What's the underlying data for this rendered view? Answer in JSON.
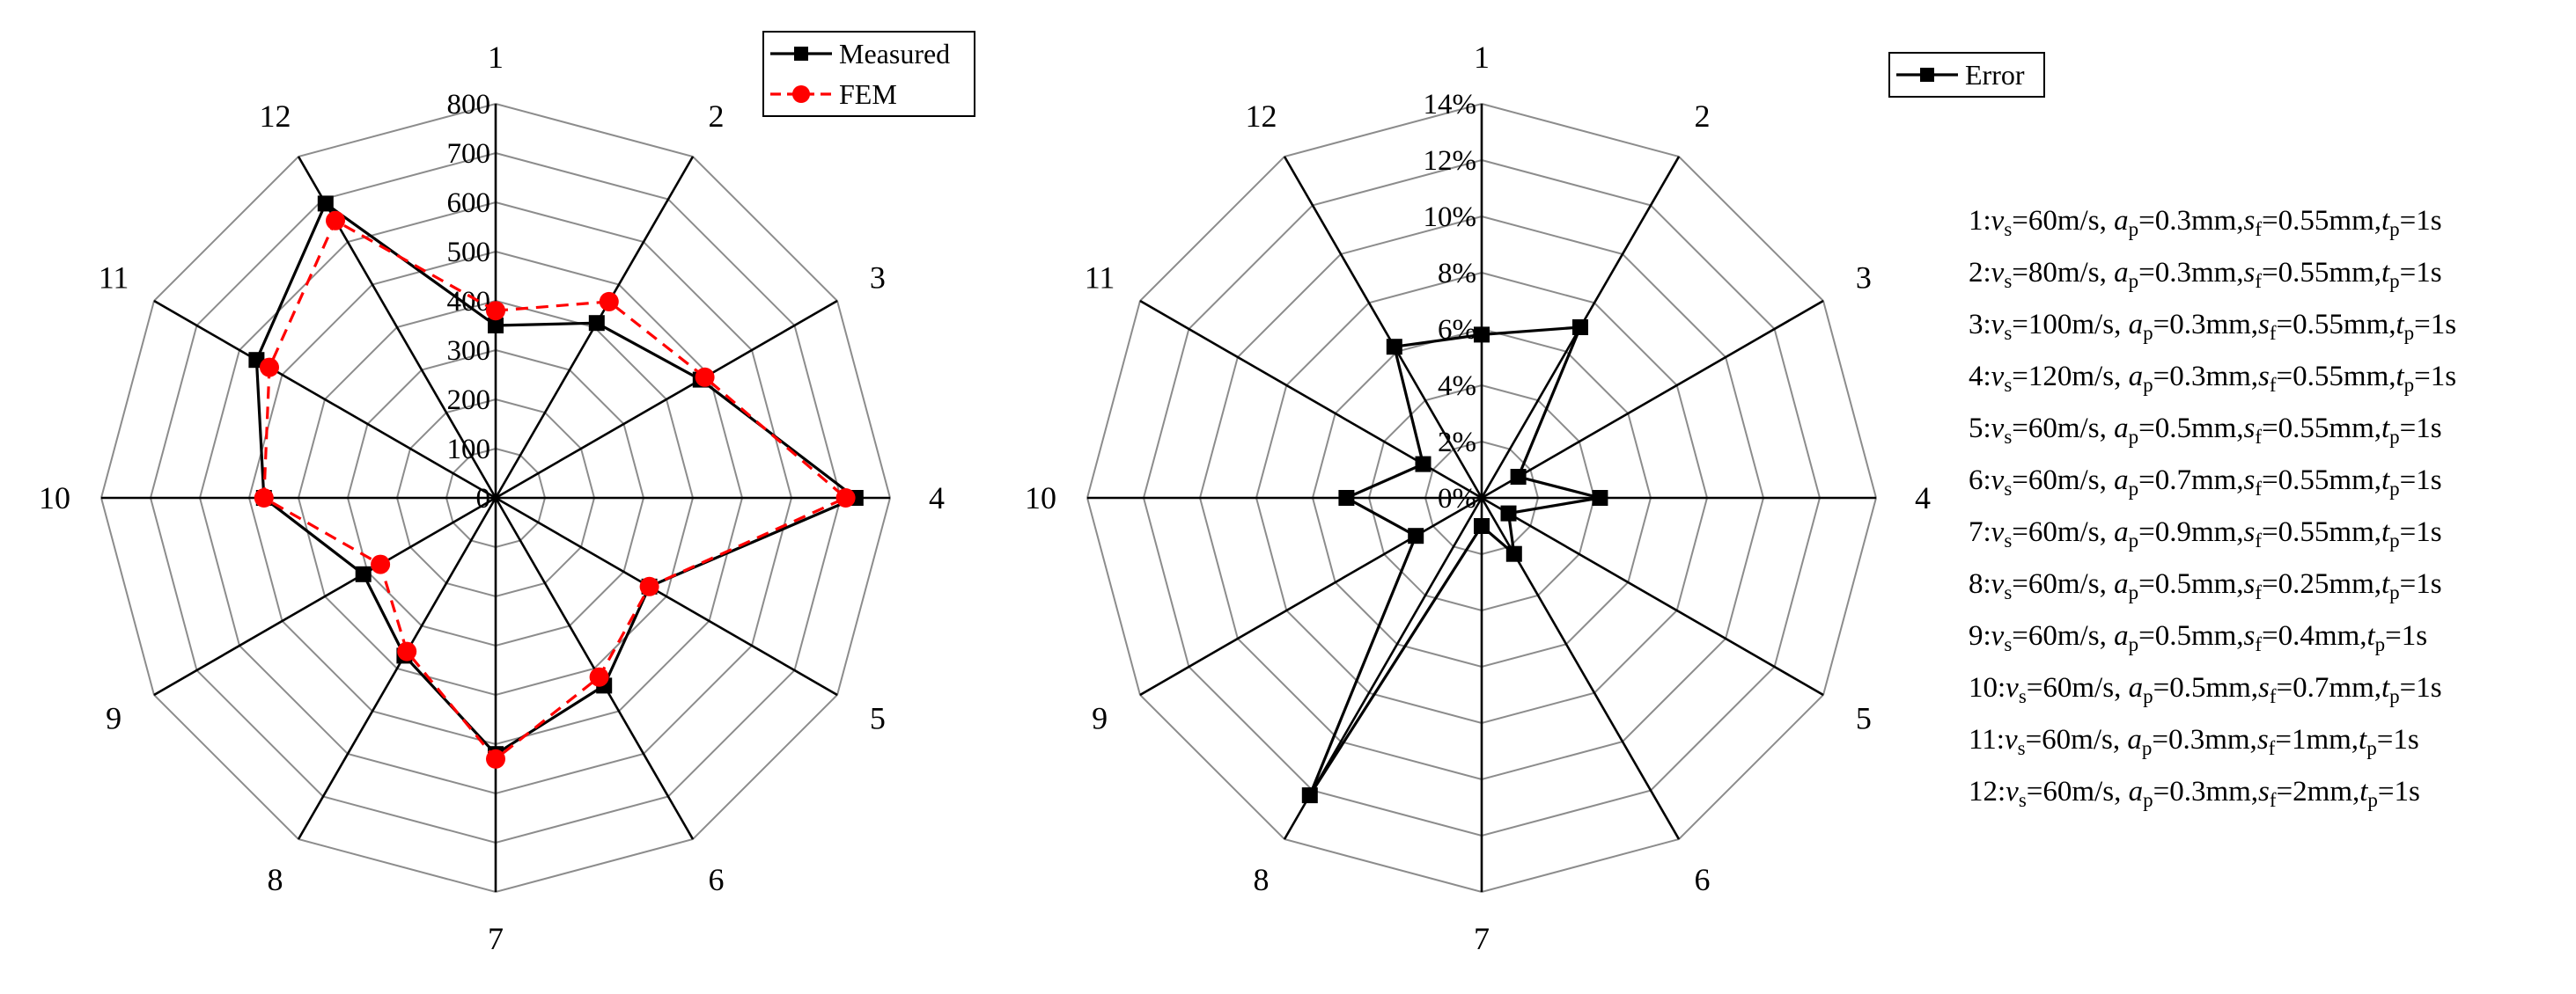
{
  "charts": [
    {
      "type": "radar",
      "axes": [
        "1",
        "2",
        "3",
        "4",
        "5",
        "6",
        "7",
        "8",
        "9",
        "10",
        "11",
        "12"
      ],
      "radial_ticks": [
        "0",
        "100",
        "200",
        "300",
        "400",
        "500",
        "600",
        "700",
        "800"
      ],
      "rmax": 800,
      "series": [
        {
          "name": "Measured",
          "color": "#000000",
          "dash": false,
          "marker": "square",
          "values": [
            350,
            410,
            480,
            730,
            360,
            440,
            520,
            370,
            310,
            470,
            560,
            690
          ]
        },
        {
          "name": "FEM",
          "color": "#ff0000",
          "dash": true,
          "marker": "circle",
          "values": [
            380,
            460,
            490,
            710,
            360,
            420,
            530,
            360,
            270,
            470,
            530,
            650
          ]
        }
      ]
    },
    {
      "type": "radar",
      "axes": [
        "1",
        "2",
        "3",
        "4",
        "5",
        "6",
        "7",
        "8",
        "9",
        "10",
        "11",
        "12"
      ],
      "radial_ticks": [
        "0%",
        "2%",
        "4%",
        "6%",
        "8%",
        "10%",
        "12%",
        "14%"
      ],
      "rmax": 14,
      "series": [
        {
          "name": "Error",
          "color": "#000000",
          "dash": false,
          "marker": "square",
          "values": [
            5.8,
            7.0,
            1.5,
            4.2,
            1.1,
            2.3,
            1.0,
            12.2,
            2.7,
            4.8,
            2.4,
            6.2
          ]
        }
      ]
    }
  ],
  "chart_data": [
    {
      "type": "radar",
      "categories": [
        "1",
        "2",
        "3",
        "4",
        "5",
        "6",
        "7",
        "8",
        "9",
        "10",
        "11",
        "12"
      ],
      "series": [
        {
          "name": "Measured",
          "values": [
            350,
            410,
            480,
            730,
            360,
            440,
            520,
            370,
            310,
            470,
            560,
            690
          ]
        },
        {
          "name": "FEM",
          "values": [
            380,
            460,
            490,
            710,
            360,
            420,
            530,
            360,
            270,
            470,
            530,
            650
          ]
        }
      ],
      "ylim": [
        0,
        800
      ],
      "ticks": [
        "0",
        "100",
        "200",
        "300",
        "400",
        "500",
        "600",
        "700",
        "800"
      ],
      "title": "",
      "xlabel": "",
      "ylabel": "",
      "grid": true,
      "legend": "top-right"
    },
    {
      "type": "radar",
      "categories": [
        "1",
        "2",
        "3",
        "4",
        "5",
        "6",
        "7",
        "8",
        "9",
        "10",
        "11",
        "12"
      ],
      "series": [
        {
          "name": "Error",
          "values": [
            5.8,
            7.0,
            1.5,
            4.2,
            1.1,
            2.3,
            1.0,
            12.2,
            2.7,
            4.8,
            2.4,
            6.2
          ]
        }
      ],
      "ylim": [
        0,
        14
      ],
      "ticks": [
        "0%",
        "2%",
        "4%",
        "6%",
        "8%",
        "10%",
        "12%",
        "14%"
      ],
      "title": "",
      "xlabel": "",
      "ylabel": "",
      "grid": true,
      "legend": "top-right"
    }
  ],
  "param_legend": [
    {
      "id": "1",
      "vs": "60m/s",
      "ap": "0.3mm",
      "sf": "0.55mm",
      "tp": "1s"
    },
    {
      "id": "2",
      "vs": "80m/s",
      "ap": "0.3mm",
      "sf": "0.55mm",
      "tp": "1s"
    },
    {
      "id": "3",
      "vs": "100m/s",
      "ap": "0.3mm",
      "sf": "0.55mm",
      "tp": "1s"
    },
    {
      "id": "4",
      "vs": "120m/s",
      "ap": "0.3mm",
      "sf": "0.55mm",
      "tp": "1s"
    },
    {
      "id": "5",
      "vs": "60m/s",
      "ap": "0.5mm",
      "sf": "0.55mm",
      "tp": "1s"
    },
    {
      "id": "6",
      "vs": "60m/s",
      "ap": "0.7mm",
      "sf": "0.55mm",
      "tp": "1s"
    },
    {
      "id": "7",
      "vs": "60m/s",
      "ap": "0.9mm",
      "sf": "0.55mm",
      "tp": "1s"
    },
    {
      "id": "8",
      "vs": "60m/s",
      "ap": "0.5mm",
      "sf": "0.25mm",
      "tp": "1s"
    },
    {
      "id": "9",
      "vs": "60m/s",
      "ap": "0.5mm",
      "sf": "0.4mm",
      "tp": "1s"
    },
    {
      "id": "10",
      "vs": "60m/s",
      "ap": "0.5mm",
      "sf": "0.7mm",
      "tp": "1s"
    },
    {
      "id": "11",
      "vs": "60m/s",
      "ap": "0.3mm",
      "sf": "1mm",
      "tp": "1s"
    },
    {
      "id": "12",
      "vs": "60m/s",
      "ap": "0.3mm",
      "sf": "2mm",
      "tp": "1s"
    }
  ]
}
